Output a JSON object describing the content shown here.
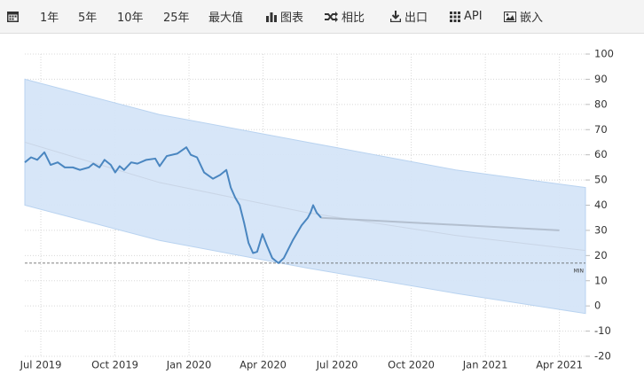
{
  "toolbar": [
    "1年",
    "5年",
    "10年",
    "25年",
    "最大值",
    "图表",
    "相比",
    "出口",
    "API",
    "嵌入"
  ],
  "chart_data": {
    "type": "line",
    "xlim": [
      2019.446,
      2021.338
    ],
    "ylim": [
      -20,
      100
    ],
    "xticks": [
      {
        "value": 2019.5,
        "label": "Jul 2019"
      },
      {
        "value": 2019.75,
        "label": "Oct 2019"
      },
      {
        "value": 2020.0,
        "label": "Jan 2020"
      },
      {
        "value": 2020.25,
        "label": "Apr 2020"
      },
      {
        "value": 2020.5,
        "label": "Jul 2020"
      },
      {
        "value": 2020.75,
        "label": "Oct 2020"
      },
      {
        "value": 2021.0,
        "label": "Jan 2021"
      },
      {
        "value": 2021.25,
        "label": "Apr 2021"
      }
    ],
    "yticks": [
      -20,
      -10,
      0,
      10,
      20,
      30,
      40,
      50,
      60,
      70,
      80,
      90,
      100
    ],
    "grid": true,
    "band": {
      "color": "#d5e5f8",
      "x": [
        2019.446,
        2019.9,
        2020.4,
        2020.9,
        2021.338
      ],
      "upper": [
        90,
        76,
        65,
        54,
        47
      ],
      "lower": [
        40,
        26,
        15,
        5,
        -3
      ]
    },
    "series": [
      {
        "color": "#c9d5e6",
        "x": [
          2019.446,
          2019.9,
          2020.4,
          2020.9,
          2021.338
        ],
        "values": [
          65,
          49,
          37,
          28,
          22
        ]
      },
      {
        "color": "#b3bfcf",
        "x": [
          2020.446,
          2021.25
        ],
        "values": [
          35,
          30
        ]
      },
      {
        "color": "#4a86c0",
        "x": [
          2019.446,
          2019.467,
          2019.488,
          2019.512,
          2019.533,
          2019.557,
          2019.581,
          2019.608,
          2019.632,
          2019.662,
          2019.677,
          2019.698,
          2019.715,
          2019.736,
          2019.751,
          2019.766,
          2019.781,
          2019.805,
          2019.826,
          2019.856,
          2019.886,
          2019.901,
          2019.925,
          2019.961,
          2019.991,
          2020.006,
          2020.027,
          2020.051,
          2020.081,
          2020.105,
          2020.126,
          2020.141,
          2020.156,
          2020.171,
          2020.186,
          2020.201,
          2020.216,
          2020.23,
          2020.248,
          2020.263,
          2020.281,
          2020.302,
          2020.32,
          2020.35,
          2020.38,
          2020.401,
          2020.41,
          2020.419,
          2020.431,
          2020.446
        ],
        "values": [
          57,
          59,
          58,
          61,
          56,
          57,
          55,
          55,
          54,
          55,
          56.5,
          55,
          58,
          56,
          53,
          55.5,
          54,
          57,
          56.5,
          58,
          58.5,
          55.5,
          59.5,
          60.5,
          63,
          60,
          59,
          53,
          50.5,
          52,
          54,
          47,
          43,
          40,
          33,
          25,
          21,
          21.5,
          28.5,
          24,
          19,
          17,
          19,
          26,
          32,
          35,
          37,
          40,
          37,
          35
        ]
      }
    ],
    "min_line": {
      "value": 17,
      "label": "MIN"
    }
  }
}
